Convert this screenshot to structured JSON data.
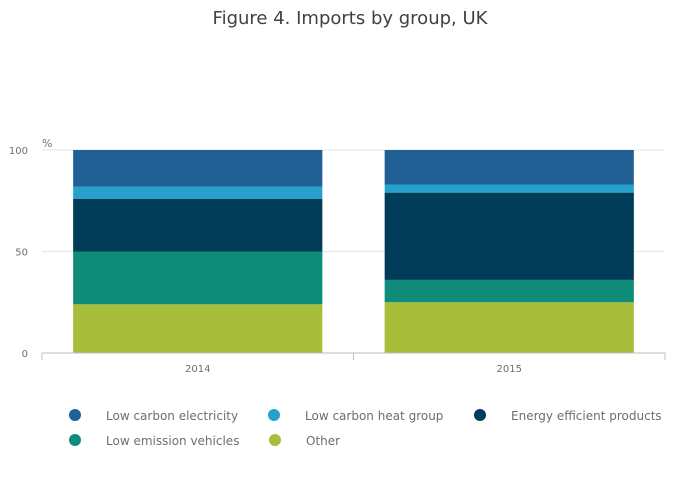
{
  "chart_data": {
    "type": "bar",
    "stacked": true,
    "title": "Figure 4. Imports by group, UK",
    "ylabel": "%",
    "ylim": [
      0,
      100
    ],
    "yticks": [
      "0",
      "50",
      "100"
    ],
    "categories": [
      "2014",
      "2015"
    ],
    "grid": true,
    "legend_position": "bottom",
    "series": [
      {
        "name": "Other",
        "color": "#a8bd3a",
        "values": [
          24,
          25
        ]
      },
      {
        "name": "Low emission vehicles",
        "color": "#0f8c79",
        "values": [
          26,
          11
        ]
      },
      {
        "name": "Energy efficient products",
        "color": "#003c57",
        "values": [
          26,
          43
        ]
      },
      {
        "name": "Low carbon heat group",
        "color": "#27a0cc",
        "values": [
          6,
          4
        ]
      },
      {
        "name": "Low carbon electricity",
        "color": "#206095",
        "values": [
          18,
          17
        ]
      }
    ],
    "legend_order": [
      "Low carbon electricity",
      "Low carbon heat group",
      "Energy efficient products",
      "Low emission vehicles",
      "Other"
    ]
  }
}
